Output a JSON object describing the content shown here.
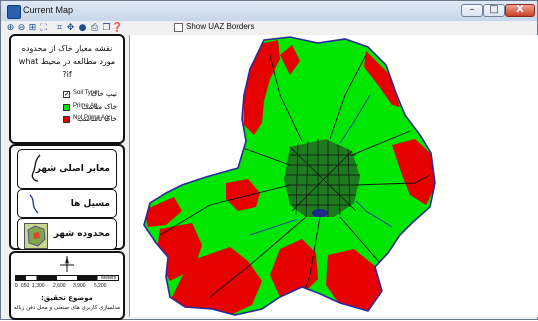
{
  "window": {
    "title": "Current Map",
    "minimize_glyph": "–",
    "maximize_glyph": "□",
    "close_glyph": "X"
  },
  "toolbar": {
    "tools": [
      {
        "name": "zoom-in-icon",
        "glyph": "⊕"
      },
      {
        "name": "zoom-out-icon",
        "glyph": "⊖"
      },
      {
        "name": "zoom-box-icon",
        "glyph": "⊞"
      },
      {
        "name": "full-extent-icon",
        "glyph": "⛶"
      },
      {
        "name": "zoom-extent-icon",
        "glyph": "⌗"
      },
      {
        "name": "pan-icon",
        "glyph": "✥"
      },
      {
        "name": "globe-icon",
        "glyph": "●"
      },
      {
        "name": "print-icon",
        "glyph": "⎙"
      },
      {
        "name": "copy-icon",
        "glyph": "❐"
      },
      {
        "name": "info-icon",
        "glyph": "❓"
      }
    ],
    "show_uaz_label": "Show UAZ Borders"
  },
  "panel_top": {
    "title": "نقشه معیار خاک از محدوده مورد مطالعه در محیط what if?",
    "legend": [
      {
        "fa": "تیپ خاک",
        "en": "Soil Type",
        "type": "checkbox",
        "checked": true
      },
      {
        "fa": "خاک مناسب",
        "en": "Prime Ag.",
        "type": "swatch",
        "color": "#00e600"
      },
      {
        "fa": "خاک نامناسب",
        "en": "Not Prime Ag.",
        "type": "swatch",
        "color": "#e60000"
      }
    ]
  },
  "panel_mid": {
    "items": [
      {
        "label": "معابر اصلی شهر"
      },
      {
        "label": "مسیل ها"
      },
      {
        "label": "محدوده شهر"
      }
    ]
  },
  "panel_bottom": {
    "scale_ticks": [
      "0",
      "650",
      "1,300",
      "2,600",
      "3,900",
      "5,200"
    ],
    "scale_unit": "Meters",
    "footer_title": "موضوع تحقیق:",
    "footer_sub": "مدلسازی کاربری های صنعتی و محل دفن زباله"
  },
  "colors": {
    "prime": "#00e600",
    "not_prime": "#e60000",
    "boundary": "#2a2a9a",
    "urban": "#1a1a1a"
  }
}
